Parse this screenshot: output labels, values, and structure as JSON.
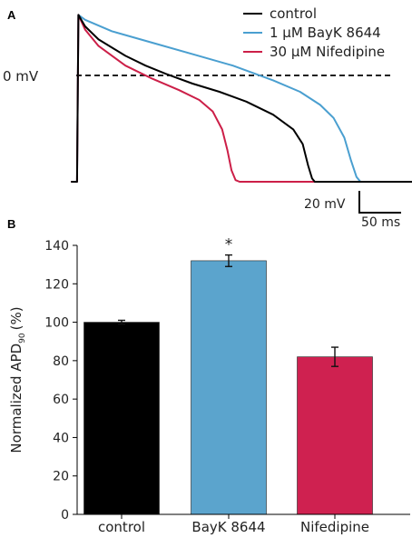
{
  "panels": {
    "a_label": "A",
    "b_label": "B"
  },
  "chart_data": [
    {
      "type": "line",
      "panel": "A",
      "reference_line_label": "0 mV",
      "scale_bar": {
        "voltage_label": "20 mV",
        "time_label": "50 ms"
      },
      "legend_placement": "top-right",
      "time_unit": "ms",
      "voltage_unit": "mV",
      "resting_potential": -65,
      "series": [
        {
          "name": "control",
          "color": "#000000",
          "points": [
            [
              0,
              -65
            ],
            [
              4,
              -65
            ],
            [
              5,
              37
            ],
            [
              10,
              30
            ],
            [
              20,
              22
            ],
            [
              40,
              12
            ],
            [
              55,
              6
            ],
            [
              70,
              1
            ],
            [
              90,
              -5
            ],
            [
              110,
              -10
            ],
            [
              130,
              -16
            ],
            [
              150,
              -24
            ],
            [
              165,
              -33
            ],
            [
              172,
              -42
            ],
            [
              176,
              -55
            ],
            [
              179,
              -63
            ],
            [
              181,
              -65
            ],
            [
              255,
              -65
            ]
          ]
        },
        {
          "name": "1 µM BayK 8644",
          "color": "#4a9fd0",
          "points": [
            [
              0,
              -65
            ],
            [
              4,
              -65
            ],
            [
              5,
              37
            ],
            [
              10,
              34
            ],
            [
              30,
              27
            ],
            [
              60,
              20
            ],
            [
              90,
              13
            ],
            [
              120,
              6
            ],
            [
              150,
              -3
            ],
            [
              170,
              -10
            ],
            [
              185,
              -18
            ],
            [
              195,
              -26
            ],
            [
              203,
              -38
            ],
            [
              208,
              -52
            ],
            [
              212,
              -62
            ],
            [
              215,
              -65
            ],
            [
              255,
              -65
            ]
          ]
        },
        {
          "name": "30 µM Nifedipine",
          "color": "#cc1f48",
          "points": [
            [
              0,
              -65
            ],
            [
              4,
              -65
            ],
            [
              5,
              37
            ],
            [
              10,
              28
            ],
            [
              20,
              18
            ],
            [
              40,
              6
            ],
            [
              60,
              -2
            ],
            [
              80,
              -9
            ],
            [
              95,
              -15
            ],
            [
              105,
              -22
            ],
            [
              112,
              -33
            ],
            [
              116,
              -46
            ],
            [
              119,
              -58
            ],
            [
              122,
              -64
            ],
            [
              125,
              -65
            ],
            [
              255,
              -65
            ]
          ]
        }
      ]
    },
    {
      "type": "bar",
      "panel": "B",
      "categories": [
        "control",
        "BayK 8644",
        "Nifedipine"
      ],
      "values": [
        100,
        132,
        82
      ],
      "errors": [
        1,
        3,
        5
      ],
      "colors": [
        "#000000",
        "#5ba4cd",
        "#cf2150"
      ],
      "significance": [
        "",
        "*",
        ""
      ],
      "ylabel_main": "Normalized APD",
      "ylabel_sub": "90",
      "ylabel_unit": "(%)",
      "ylim": [
        0,
        140
      ],
      "yticks": [
        "0",
        "20",
        "40",
        "60",
        "80",
        "100",
        "120",
        "140"
      ]
    }
  ]
}
